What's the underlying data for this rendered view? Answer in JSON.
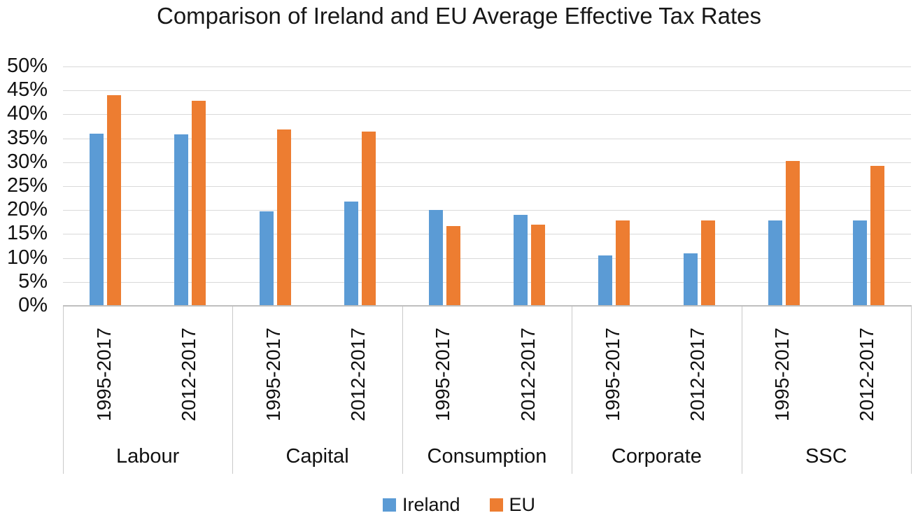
{
  "title": "Comparison of Ireland and EU Average Effective Tax Rates",
  "legend": {
    "items": [
      {
        "label": "Ireland",
        "color": "#5B9BD5"
      },
      {
        "label": "EU",
        "color": "#ED7D31"
      }
    ]
  },
  "chart_data": {
    "type": "bar",
    "title": "Comparison of Ireland and EU Average Effective Tax Rates",
    "categories": [
      "Labour",
      "Capital",
      "Consumption",
      "Corporate",
      "SSC"
    ],
    "subcategories": [
      "1995-2017",
      "2012-2017"
    ],
    "series": [
      {
        "name": "Ireland",
        "color": "#5B9BD5",
        "values": [
          [
            36.0,
            35.8
          ],
          [
            19.8,
            21.8
          ],
          [
            20.1,
            19.0
          ],
          [
            10.5,
            11.0
          ],
          [
            17.8,
            17.9
          ]
        ]
      },
      {
        "name": "EU",
        "color": "#ED7D31",
        "values": [
          [
            44.0,
            42.8
          ],
          [
            36.8,
            36.4
          ],
          [
            16.6,
            16.9
          ],
          [
            17.8,
            17.9
          ],
          [
            30.3,
            29.3
          ]
        ]
      }
    ],
    "y_axis": {
      "min": 0,
      "max": 50,
      "step": 5,
      "unit": "%",
      "tick_labels": [
        "0%",
        "5%",
        "10%",
        "15%",
        "20%",
        "25%",
        "30%",
        "35%",
        "40%",
        "45%",
        "50%"
      ]
    },
    "grid": true,
    "legend_position": "bottom",
    "colors": {
      "gridline": "#D9D9D9",
      "axis": "#BFBFBF",
      "text": "#1F1F1F"
    }
  }
}
